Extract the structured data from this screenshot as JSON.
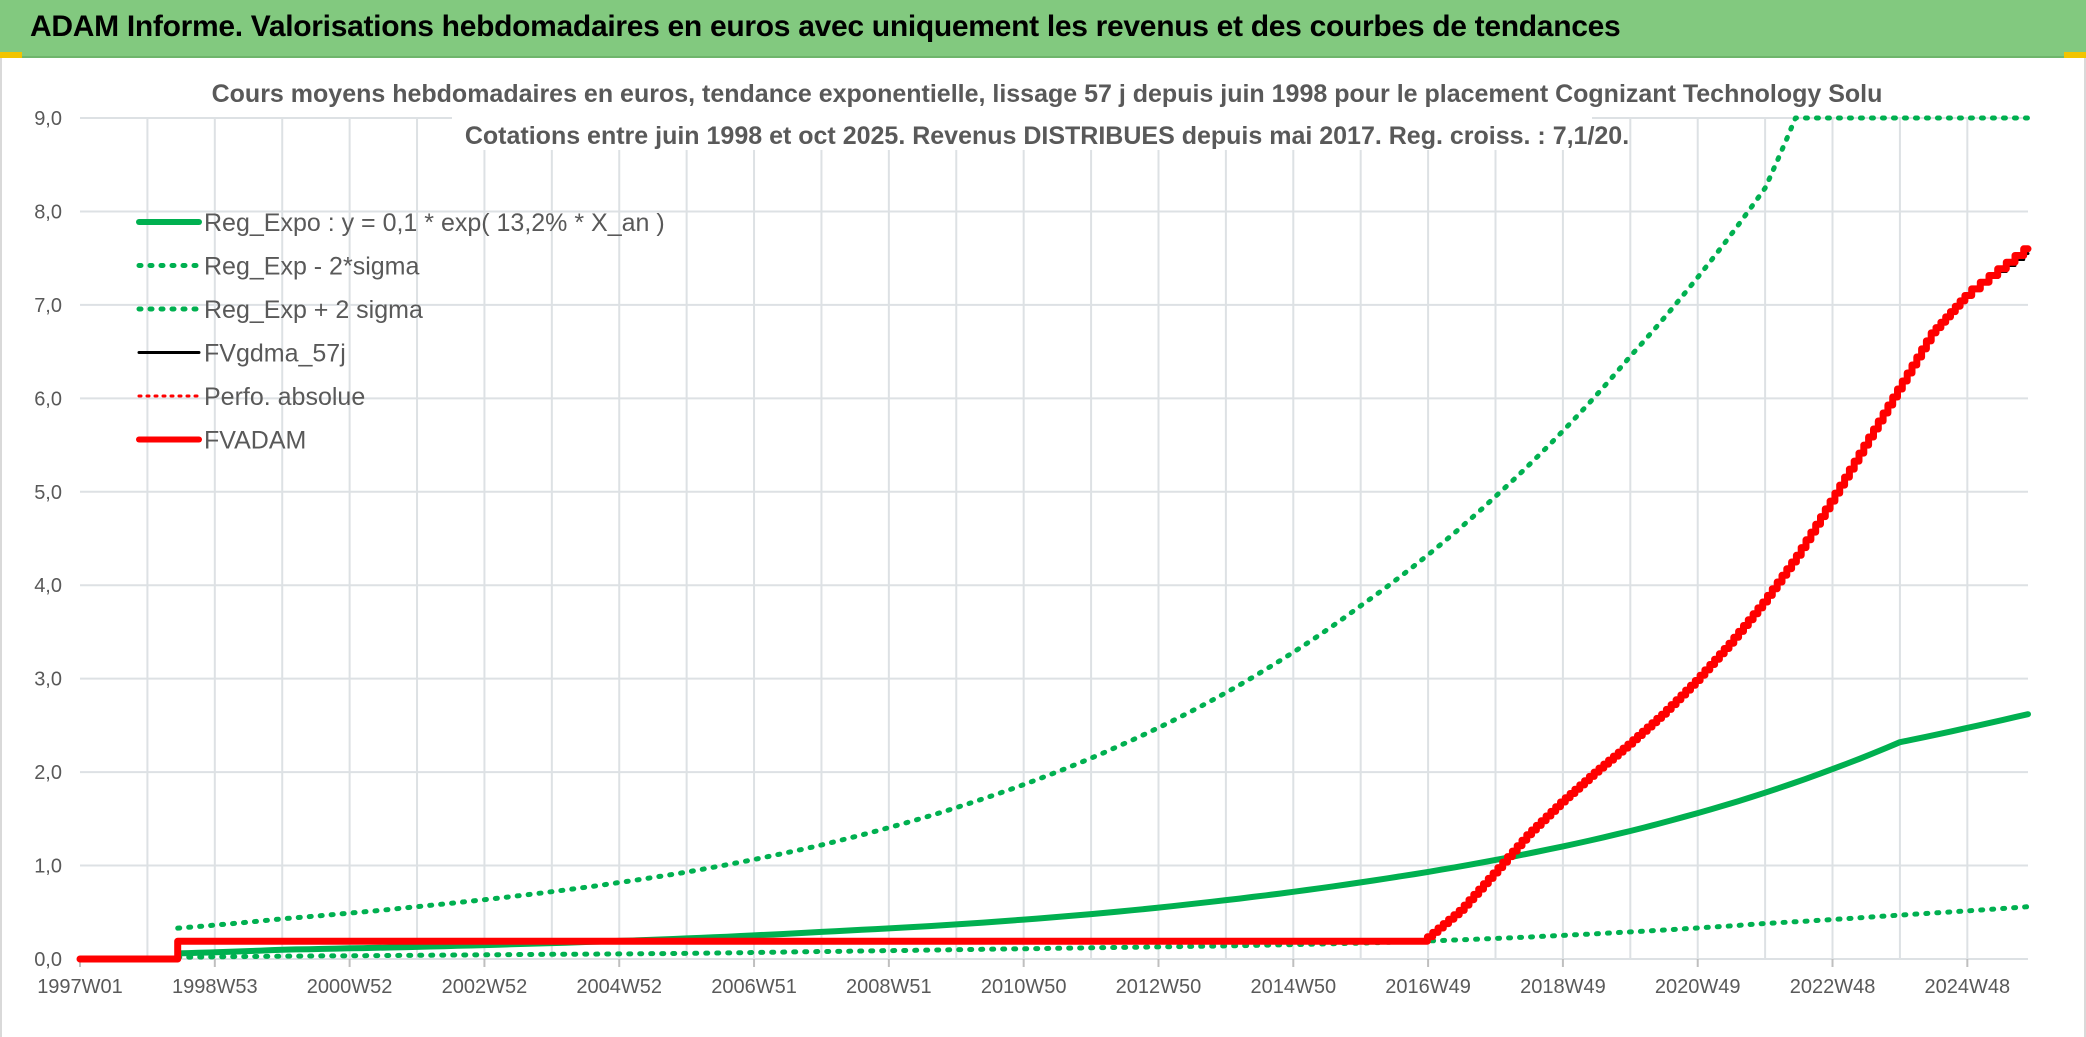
{
  "header": {
    "title": "ADAM Informe. Valorisations hebdomadaires en euros avec uniquement les revenus et des courbes de tendances"
  },
  "colors": {
    "header_bg": "#82c97f",
    "green": "#00b050",
    "red": "#ff0000",
    "black": "#000000",
    "grid": "#dde1e4",
    "text": "#595959"
  },
  "chart_data": {
    "type": "line",
    "title": [
      "Cours moyens hebdomadaires en euros, tendance exponentielle, lissage 57 j depuis juin 1998 pour le placement Cognizant Technology Solu",
      "Cotations entre juin 1998 et oct 2025. Revenus DISTRIBUES depuis mai 2017. Reg. croiss. : 7,1/20."
    ],
    "xlabel": "",
    "ylabel": "",
    "x_tick_labels": [
      "1997W01",
      "1998W53",
      "2000W52",
      "2002W52",
      "2004W52",
      "2006W51",
      "2008W51",
      "2010W50",
      "2012W50",
      "2014W50",
      "2016W49",
      "2018W49",
      "2020W49",
      "2022W48",
      "2024W48"
    ],
    "x_tick_years": [
      1997.0,
      1999.0,
      2001.0,
      2003.0,
      2005.0,
      2007.0,
      2009.0,
      2011.0,
      2013.0,
      2015.0,
      2017.0,
      2019.0,
      2021.0,
      2023.0,
      2025.0
    ],
    "xlim": [
      1997.0,
      2025.9
    ],
    "y_tick_labels": [
      "0,0",
      "1,0",
      "2,0",
      "3,0",
      "4,0",
      "5,0",
      "6,0",
      "7,0",
      "8,0",
      "9,0"
    ],
    "ylim": [
      0,
      9
    ],
    "grid": true,
    "legend_position": "top-left",
    "series": [
      {
        "name": "Reg_Expo : y = 0,1 * exp( 13,2% *  X_an )",
        "style": "solid-green",
        "points": [
          [
            1997.0,
            0
          ],
          [
            1998.45,
            0
          ],
          [
            1998.45,
            0.06
          ],
          [
            2000,
            0.1
          ],
          [
            2002,
            0.13
          ],
          [
            2004,
            0.17
          ],
          [
            2006,
            0.22
          ],
          [
            2008,
            0.29
          ],
          [
            2010,
            0.37
          ],
          [
            2012,
            0.48
          ],
          [
            2014,
            0.63
          ],
          [
            2016,
            0.82
          ],
          [
            2018,
            1.06
          ],
          [
            2020,
            1.37
          ],
          [
            2022,
            1.78
          ],
          [
            2024,
            2.32
          ],
          [
            2025.9,
            2.62
          ]
        ]
      },
      {
        "name": "Reg_Exp - 2*sigma",
        "style": "dotted-green",
        "points": [
          [
            1998.45,
            0.02
          ],
          [
            2000,
            0.03
          ],
          [
            2002,
            0.04
          ],
          [
            2004,
            0.05
          ],
          [
            2006,
            0.06
          ],
          [
            2008,
            0.08
          ],
          [
            2010,
            0.1
          ],
          [
            2012,
            0.12
          ],
          [
            2014,
            0.14
          ],
          [
            2016,
            0.17
          ],
          [
            2018,
            0.22
          ],
          [
            2020,
            0.29
          ],
          [
            2022,
            0.38
          ],
          [
            2024,
            0.47
          ],
          [
            2025.9,
            0.56
          ]
        ]
      },
      {
        "name": "Reg_Exp + 2 sigma",
        "style": "dotted-green",
        "points": [
          [
            1998.45,
            0.33
          ],
          [
            2000,
            0.43
          ],
          [
            2002,
            0.56
          ],
          [
            2004,
            0.72
          ],
          [
            2006,
            0.93
          ],
          [
            2008,
            1.22
          ],
          [
            2010,
            1.62
          ],
          [
            2012,
            2.15
          ],
          [
            2014,
            2.85
          ],
          [
            2016,
            3.78
          ],
          [
            2018,
            4.95
          ],
          [
            2020,
            6.45
          ],
          [
            2022,
            8.25
          ],
          [
            2022.45,
            9.0
          ],
          [
            2025.9,
            9.0
          ]
        ]
      },
      {
        "name": "FVgdma_57j",
        "style": "solid-black",
        "points": [
          [
            1997.0,
            0
          ],
          [
            1998.45,
            0
          ],
          [
            1998.45,
            0.19
          ],
          [
            2016.95,
            0.19
          ],
          [
            2017.5,
            0.52
          ],
          [
            2018,
            0.92
          ],
          [
            2018.5,
            1.33
          ],
          [
            2019,
            1.68
          ],
          [
            2019.5,
            2.0
          ],
          [
            2020,
            2.3
          ],
          [
            2020.5,
            2.62
          ],
          [
            2021,
            2.98
          ],
          [
            2021.5,
            3.38
          ],
          [
            2022,
            3.82
          ],
          [
            2022.5,
            4.32
          ],
          [
            2023,
            4.9
          ],
          [
            2023.5,
            5.5
          ],
          [
            2024,
            6.1
          ],
          [
            2024.5,
            6.7
          ],
          [
            2025,
            7.1
          ],
          [
            2025.9,
            7.55
          ]
        ]
      },
      {
        "name": "Perfo. absolue",
        "style": "dotted-red",
        "points": [
          [
            1997.0,
            0
          ],
          [
            1998.45,
            0
          ],
          [
            1998.45,
            0.19
          ],
          [
            2016.95,
            0.19
          ],
          [
            2017.5,
            0.52
          ],
          [
            2018,
            0.92
          ],
          [
            2018.5,
            1.33
          ],
          [
            2019,
            1.68
          ],
          [
            2019.5,
            2.0
          ],
          [
            2020,
            2.3
          ],
          [
            2020.5,
            2.62
          ],
          [
            2021,
            2.98
          ],
          [
            2021.5,
            3.38
          ],
          [
            2022,
            3.82
          ],
          [
            2022.5,
            4.32
          ],
          [
            2023,
            4.9
          ],
          [
            2023.5,
            5.5
          ],
          [
            2024,
            6.1
          ],
          [
            2024.5,
            6.7
          ],
          [
            2025,
            7.1
          ],
          [
            2025.9,
            7.6
          ]
        ]
      },
      {
        "name": "FVADAM",
        "style": "solid-red",
        "points": [
          [
            1997.0,
            0
          ],
          [
            1998.45,
            0
          ],
          [
            1998.45,
            0.19
          ],
          [
            2016.95,
            0.19
          ],
          [
            2017.5,
            0.52
          ],
          [
            2018,
            0.92
          ],
          [
            2018.5,
            1.33
          ],
          [
            2019,
            1.68
          ],
          [
            2019.5,
            2.0
          ],
          [
            2020,
            2.3
          ],
          [
            2020.5,
            2.62
          ],
          [
            2021,
            2.98
          ],
          [
            2021.5,
            3.38
          ],
          [
            2022,
            3.82
          ],
          [
            2022.5,
            4.32
          ],
          [
            2023,
            4.9
          ],
          [
            2023.5,
            5.5
          ],
          [
            2024,
            6.1
          ],
          [
            2024.5,
            6.7
          ],
          [
            2025,
            7.1
          ],
          [
            2025.9,
            7.6
          ]
        ]
      }
    ]
  }
}
